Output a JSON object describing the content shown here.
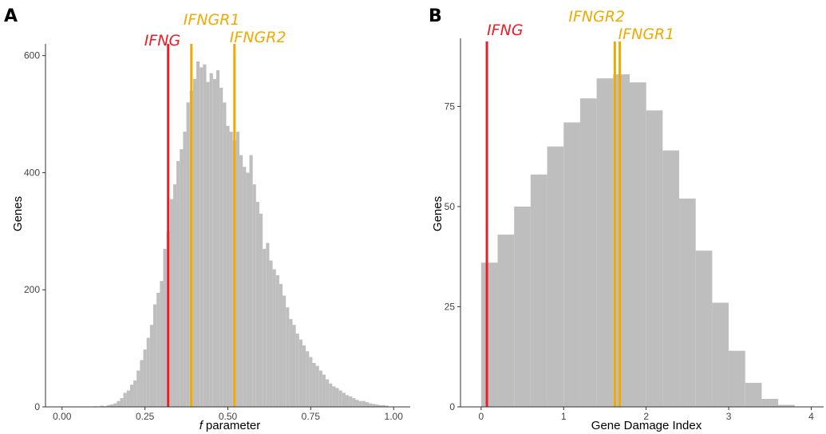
{
  "panels": [
    {
      "letter": "A"
    },
    {
      "letter": "B"
    }
  ],
  "chart_data": [
    {
      "type": "bar",
      "panel": "A",
      "xlabel_italic": "f",
      "xlabel": "parameter",
      "ylabel": "Genes",
      "xlim": [
        -0.05,
        1.05
      ],
      "ylim": [
        0,
        620
      ],
      "xticks": [
        0.0,
        0.25,
        0.5,
        0.75,
        1.0
      ],
      "xtick_labels": [
        "0.00",
        "0.25",
        "0.50",
        "0.75",
        "1.00"
      ],
      "yticks": [
        0,
        200,
        400,
        600
      ],
      "ytick_labels": [
        "0",
        "200",
        "400",
        "600"
      ],
      "bin_width": 0.01,
      "x": [
        0.1,
        0.11,
        0.12,
        0.13,
        0.14,
        0.15,
        0.16,
        0.17,
        0.18,
        0.19,
        0.2,
        0.21,
        0.22,
        0.23,
        0.24,
        0.25,
        0.26,
        0.27,
        0.28,
        0.29,
        0.3,
        0.31,
        0.32,
        0.33,
        0.34,
        0.35,
        0.36,
        0.37,
        0.38,
        0.39,
        0.4,
        0.41,
        0.42,
        0.43,
        0.44,
        0.45,
        0.46,
        0.47,
        0.48,
        0.49,
        0.5,
        0.51,
        0.52,
        0.53,
        0.54,
        0.55,
        0.56,
        0.57,
        0.58,
        0.59,
        0.6,
        0.61,
        0.62,
        0.63,
        0.64,
        0.65,
        0.66,
        0.67,
        0.68,
        0.69,
        0.7,
        0.71,
        0.72,
        0.73,
        0.74,
        0.75,
        0.76,
        0.77,
        0.78,
        0.79,
        0.8,
        0.81,
        0.82,
        0.83,
        0.84,
        0.85,
        0.86,
        0.87,
        0.88,
        0.89,
        0.9,
        0.91,
        0.92,
        0.93,
        0.94,
        0.95,
        0.96,
        0.97,
        0.98
      ],
      "values": [
        1,
        0,
        2,
        1,
        3,
        4,
        6,
        10,
        15,
        24,
        28,
        38,
        45,
        62,
        80,
        98,
        118,
        140,
        175,
        195,
        215,
        270,
        300,
        355,
        380,
        420,
        440,
        470,
        520,
        540,
        560,
        590,
        580,
        585,
        555,
        570,
        560,
        575,
        545,
        520,
        480,
        470,
        455,
        470,
        430,
        410,
        400,
        430,
        380,
        350,
        330,
        270,
        280,
        250,
        235,
        225,
        210,
        190,
        170,
        150,
        140,
        125,
        115,
        105,
        95,
        85,
        75,
        70,
        62,
        55,
        47,
        40,
        35,
        32,
        28,
        24,
        20,
        18,
        15,
        12,
        10,
        10,
        8,
        6,
        5,
        4,
        3,
        3,
        2
      ],
      "markers": [
        {
          "label": "IFNG",
          "x": 0.32,
          "color": "#ee1c25"
        },
        {
          "label": "IFNGR1",
          "x": 0.39,
          "color": "#f2a900"
        },
        {
          "label": "IFNGR2",
          "x": 0.52,
          "color": "#f2a900"
        }
      ]
    },
    {
      "type": "bar",
      "panel": "B",
      "xlabel": "Gene Damage Index",
      "ylabel": "Genes",
      "xlim": [
        -0.25,
        4.15
      ],
      "ylim": [
        0,
        92
      ],
      "xticks": [
        0,
        1,
        2,
        3,
        4
      ],
      "xtick_labels": [
        "0",
        "1",
        "2",
        "3",
        "4"
      ],
      "yticks": [
        0,
        25,
        50,
        75
      ],
      "ytick_labels": [
        "0",
        "25",
        "50",
        "75"
      ],
      "bin_width": 0.2,
      "x": [
        0.1,
        0.3,
        0.5,
        0.7,
        0.9,
        1.1,
        1.3,
        1.5,
        1.7,
        1.9,
        2.1,
        2.3,
        2.5,
        2.7,
        2.9,
        3.1,
        3.3,
        3.5,
        3.7
      ],
      "values": [
        36,
        43,
        50,
        58,
        65,
        71,
        77,
        82,
        83,
        81,
        74,
        64,
        52,
        39,
        26,
        14,
        6,
        2,
        0.5
      ],
      "markers": [
        {
          "label": "IFNG",
          "x": 0.07,
          "color": "#ee1c25"
        },
        {
          "label": "IFNGR2",
          "x": 1.62,
          "color": "#f2a900"
        },
        {
          "label": "IFNGR1",
          "x": 1.68,
          "color": "#f2a900"
        }
      ]
    }
  ],
  "colors": {
    "bar": "#bebebe",
    "axis": "#333333"
  }
}
